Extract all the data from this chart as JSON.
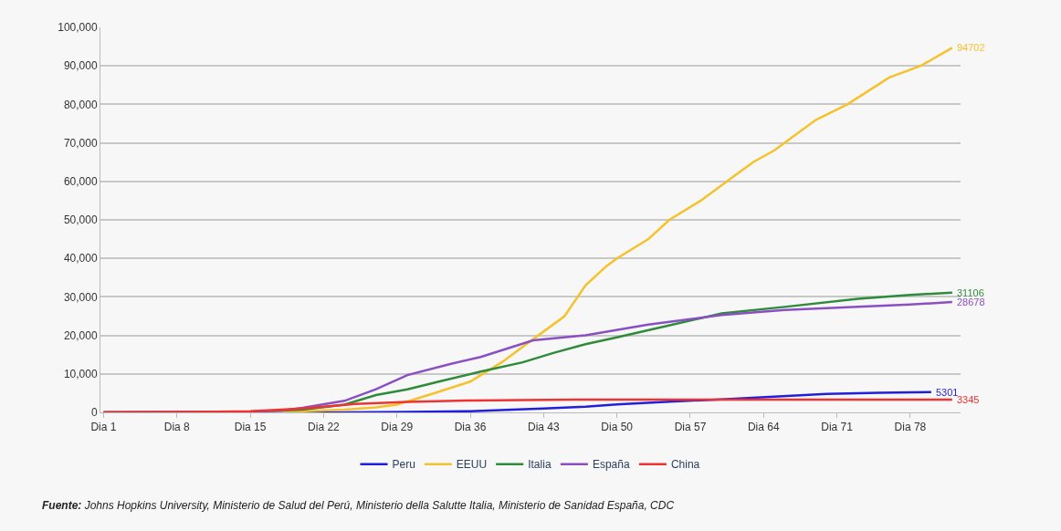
{
  "chart_data": {
    "type": "line",
    "categories": [
      "Dia 1",
      null,
      null,
      null,
      null,
      null,
      null,
      "Dia 8",
      null,
      null,
      null,
      null,
      null,
      null,
      "Dia 15",
      null,
      null,
      null,
      null,
      null,
      null,
      "Dia 22",
      null,
      null,
      null,
      null,
      null,
      null,
      "Dia 29",
      null,
      null,
      null,
      null,
      null,
      null,
      "Dia 36",
      null,
      null,
      null,
      null,
      null,
      null,
      "Dia 43",
      null,
      null,
      null,
      null,
      null,
      null,
      "Dia 50",
      null,
      null,
      null,
      null,
      null,
      null,
      "Dia 57",
      null,
      null,
      null,
      null,
      null,
      null,
      "Dia 64",
      null,
      null,
      null,
      null,
      null,
      null,
      "Dia 71",
      null,
      null,
      null,
      null,
      null,
      null,
      "Dia 78",
      null,
      null,
      null,
      null
    ],
    "ylim": [
      0,
      100000
    ],
    "yticks": [
      {
        "value": 0,
        "label": "0"
      },
      {
        "value": 10000,
        "label": "10,000"
      },
      {
        "value": 20000,
        "label": "20,000"
      },
      {
        "value": 30000,
        "label": "30,000"
      },
      {
        "value": 40000,
        "label": "40,000"
      },
      {
        "value": 50000,
        "label": "50,000"
      },
      {
        "value": 60000,
        "label": "60,000"
      },
      {
        "value": 70000,
        "label": "70,000"
      },
      {
        "value": 80000,
        "label": "80,000"
      },
      {
        "value": 90000,
        "label": "90,000"
      },
      {
        "value": 100000,
        "label": "100,000"
      }
    ],
    "grid": "y",
    "legend": "bottom",
    "line_style": "solid",
    "marker": "none",
    "series": [
      {
        "name": "Peru",
        "color": "#1f1fdc",
        "values": [
          0,
          null,
          null,
          null,
          null,
          null,
          null,
          null,
          null,
          null,
          null,
          null,
          null,
          null,
          null,
          null,
          null,
          null,
          null,
          null,
          null,
          null,
          null,
          0,
          null,
          null,
          null,
          null,
          null,
          100,
          null,
          null,
          null,
          null,
          null,
          300,
          null,
          null,
          null,
          700,
          null,
          null,
          1000,
          null,
          null,
          null,
          1500,
          null,
          null,
          2100,
          null,
          null,
          null,
          null,
          2800,
          null,
          null,
          null,
          null,
          3400,
          null,
          null,
          null,
          null,
          4100,
          null,
          null,
          null,
          null,
          4800,
          null,
          null,
          null,
          null,
          5100,
          null,
          null,
          null,
          null,
          5301,
          null,
          null
        ],
        "value_labels": [
          null,
          null,
          null,
          null,
          null,
          null,
          null,
          null,
          null,
          null,
          null,
          null,
          null,
          null,
          null,
          null,
          null,
          null,
          null,
          null,
          null,
          null,
          null,
          null,
          null,
          null,
          null,
          null,
          null,
          null,
          null,
          null,
          null,
          null,
          null,
          null,
          null,
          null,
          null,
          null,
          null,
          null,
          null,
          null,
          null,
          null,
          null,
          null,
          null,
          null,
          null,
          null,
          null,
          null,
          null,
          null,
          null,
          null,
          null,
          null,
          null,
          null,
          null,
          null,
          null,
          null,
          null,
          null,
          null,
          null,
          null,
          null,
          null,
          null,
          null,
          null,
          null,
          null,
          null,
          "5301",
          null,
          null
        ]
      },
      {
        "name": "EEUU",
        "color": "#f5c22b",
        "values": [
          0,
          null,
          null,
          null,
          null,
          null,
          null,
          null,
          null,
          null,
          null,
          null,
          null,
          null,
          100,
          null,
          null,
          null,
          null,
          300,
          null,
          null,
          null,
          700,
          null,
          null,
          1300,
          null,
          2000,
          null,
          null,
          4500,
          null,
          null,
          null,
          8000,
          null,
          null,
          13000,
          null,
          17000,
          null,
          21000,
          null,
          25000,
          29000,
          33000,
          null,
          38000,
          40000,
          null,
          null,
          45000,
          null,
          50000,
          null,
          null,
          55000,
          null,
          null,
          61000,
          null,
          65000,
          null,
          68000,
          null,
          null,
          null,
          76000,
          null,
          null,
          80000,
          null,
          null,
          null,
          87000,
          null,
          null,
          90000,
          null,
          null,
          94702
        ],
        "value_labels": [
          null,
          null,
          null,
          null,
          null,
          null,
          null,
          null,
          null,
          null,
          null,
          null,
          null,
          null,
          null,
          null,
          null,
          null,
          null,
          null,
          null,
          null,
          null,
          null,
          null,
          null,
          null,
          null,
          null,
          null,
          null,
          null,
          null,
          null,
          null,
          null,
          null,
          null,
          null,
          null,
          null,
          null,
          null,
          null,
          null,
          null,
          null,
          null,
          null,
          null,
          null,
          null,
          null,
          null,
          null,
          null,
          null,
          null,
          null,
          null,
          null,
          null,
          null,
          null,
          null,
          null,
          null,
          null,
          null,
          null,
          null,
          null,
          null,
          null,
          null,
          null,
          null,
          null,
          null,
          null,
          null,
          "94702"
        ]
      },
      {
        "name": "Italia",
        "color": "#2e8b3a",
        "values": [
          0,
          null,
          null,
          null,
          null,
          null,
          null,
          null,
          null,
          null,
          null,
          null,
          null,
          null,
          200,
          null,
          null,
          null,
          null,
          700,
          null,
          null,
          null,
          2000,
          null,
          null,
          4500,
          null,
          null,
          6000,
          null,
          null,
          8000,
          null,
          null,
          null,
          10600,
          null,
          null,
          null,
          13000,
          null,
          null,
          15500,
          null,
          null,
          17700,
          null,
          null,
          19500,
          null,
          null,
          null,
          22000,
          null,
          null,
          null,
          null,
          null,
          25700,
          null,
          null,
          null,
          null,
          null,
          27400,
          null,
          null,
          null,
          null,
          null,
          null,
          29500,
          null,
          null,
          null,
          null,
          30500,
          null,
          null,
          null,
          31106
        ],
        "value_labels": [
          null,
          null,
          null,
          null,
          null,
          null,
          null,
          null,
          null,
          null,
          null,
          null,
          null,
          null,
          null,
          null,
          null,
          null,
          null,
          null,
          null,
          null,
          null,
          null,
          null,
          null,
          null,
          null,
          null,
          null,
          null,
          null,
          null,
          null,
          null,
          null,
          null,
          null,
          null,
          null,
          null,
          null,
          null,
          null,
          null,
          null,
          null,
          null,
          null,
          null,
          null,
          null,
          null,
          null,
          null,
          null,
          null,
          null,
          null,
          null,
          null,
          null,
          null,
          null,
          null,
          null,
          null,
          null,
          null,
          null,
          null,
          null,
          null,
          null,
          null,
          null,
          null,
          null,
          null,
          null,
          null,
          "31106"
        ]
      },
      {
        "name": "España",
        "color": "#8a4fc2",
        "values": [
          0,
          null,
          null,
          null,
          null,
          null,
          null,
          null,
          null,
          null,
          null,
          null,
          null,
          null,
          200,
          null,
          null,
          500,
          null,
          1200,
          null,
          null,
          null,
          3000,
          null,
          null,
          6000,
          null,
          null,
          9700,
          null,
          null,
          null,
          12500,
          null,
          null,
          14400,
          null,
          null,
          null,
          null,
          18700,
          null,
          null,
          null,
          null,
          20000,
          null,
          null,
          null,
          null,
          null,
          22800,
          null,
          null,
          null,
          null,
          null,
          null,
          25300,
          null,
          null,
          null,
          null,
          null,
          26600,
          null,
          null,
          null,
          null,
          null,
          null,
          27400,
          null,
          null,
          null,
          null,
          28000,
          null,
          null,
          null,
          28678
        ],
        "value_labels": [
          null,
          null,
          null,
          null,
          null,
          null,
          null,
          null,
          null,
          null,
          null,
          null,
          null,
          null,
          null,
          null,
          null,
          null,
          null,
          null,
          null,
          null,
          null,
          null,
          null,
          null,
          null,
          null,
          null,
          null,
          null,
          null,
          null,
          null,
          null,
          null,
          null,
          null,
          null,
          null,
          null,
          null,
          null,
          null,
          null,
          null,
          null,
          null,
          null,
          null,
          null,
          null,
          null,
          null,
          null,
          null,
          null,
          null,
          null,
          null,
          null,
          null,
          null,
          null,
          null,
          null,
          null,
          null,
          null,
          null,
          null,
          null,
          null,
          null,
          null,
          null,
          null,
          null,
          null,
          null,
          null,
          "28678"
        ]
      },
      {
        "name": "China",
        "color": "#ee3333",
        "values": [
          0,
          null,
          null,
          null,
          null,
          null,
          null,
          null,
          null,
          100,
          null,
          null,
          null,
          null,
          300,
          null,
          null,
          null,
          null,
          1000,
          null,
          1500,
          null,
          null,
          2200,
          null,
          null,
          null,
          null,
          2700,
          null,
          null,
          null,
          null,
          null,
          3100,
          null,
          null,
          null,
          null,
          null,
          null,
          null,
          null,
          null,
          3300,
          null,
          null,
          null,
          null,
          null,
          null,
          null,
          null,
          null,
          null,
          null,
          null,
          null,
          3330,
          null,
          null,
          null,
          null,
          null,
          null,
          null,
          null,
          null,
          3340,
          null,
          null,
          null,
          null,
          null,
          null,
          null,
          null,
          null,
          null,
          null,
          3345
        ],
        "value_labels": [
          null,
          null,
          null,
          null,
          null,
          null,
          null,
          null,
          null,
          null,
          null,
          null,
          null,
          null,
          null,
          null,
          null,
          null,
          null,
          null,
          null,
          null,
          null,
          null,
          null,
          null,
          null,
          null,
          null,
          null,
          null,
          null,
          null,
          null,
          null,
          null,
          null,
          null,
          null,
          null,
          null,
          null,
          null,
          null,
          null,
          null,
          null,
          null,
          null,
          null,
          null,
          null,
          null,
          null,
          null,
          null,
          null,
          null,
          null,
          null,
          null,
          null,
          null,
          null,
          null,
          null,
          null,
          null,
          null,
          null,
          null,
          null,
          null,
          null,
          null,
          null,
          null,
          null,
          null,
          null,
          null,
          "3345"
        ]
      }
    ],
    "annotations": [
      "Fuente: Johns Hopkins University, Ministerio de Salud del Perú, Ministerio della Salutte Italia, Ministerio de Sanidad España, CDC"
    ]
  }
}
